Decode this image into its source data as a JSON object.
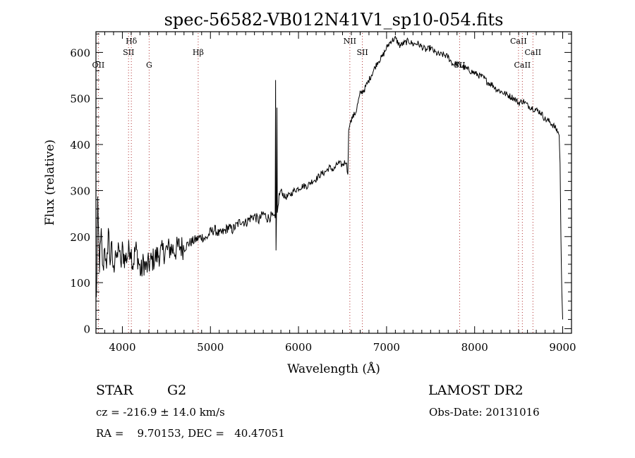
{
  "chart_data": {
    "type": "line",
    "title": "spec-56582-VB012N41V1_sp10-054.fits",
    "xlabel": "Wavelength (Å)",
    "ylabel": "Flux (relative)",
    "xlim": [
      3700,
      9100
    ],
    "ylim": [
      -10,
      645
    ],
    "x_ticks": [
      4000,
      5000,
      6000,
      7000,
      8000,
      9000
    ],
    "y_ticks": [
      0,
      100,
      200,
      300,
      400,
      500,
      600
    ],
    "grid": false,
    "line_color": "#000000",
    "marker_color": "#b03030",
    "spectrum": {
      "x": [
        3705,
        3720,
        3740,
        3760,
        3780,
        3800,
        3820,
        3840,
        3860,
        3880,
        3900,
        3920,
        3940,
        3960,
        3980,
        4000,
        4030,
        4060,
        4090,
        4120,
        4150,
        4180,
        4210,
        4240,
        4270,
        4300,
        4350,
        4400,
        4450,
        4500,
        4550,
        4600,
        4650,
        4700,
        4750,
        4800,
        4850,
        4900,
        4950,
        5000,
        5050,
        5100,
        5150,
        5200,
        5250,
        5300,
        5350,
        5400,
        5450,
        5500,
        5550,
        5600,
        5650,
        5700,
        5735,
        5740,
        5745,
        5750,
        5755,
        5760,
        5780,
        5800,
        5850,
        5900,
        5950,
        6000,
        6050,
        6100,
        6150,
        6200,
        6250,
        6300,
        6350,
        6400,
        6450,
        6500,
        6540,
        6560,
        6570,
        6580,
        6590,
        6600,
        6650,
        6700,
        6750,
        6800,
        6850,
        6900,
        6950,
        7000,
        7050,
        7100,
        7150,
        7200,
        7250,
        7300,
        7350,
        7400,
        7450,
        7500,
        7550,
        7600,
        7650,
        7700,
        7750,
        7800,
        7850,
        7900,
        7950,
        8000,
        8050,
        8100,
        8150,
        8200,
        8250,
        8300,
        8350,
        8400,
        8450,
        8500,
        8550,
        8600,
        8650,
        8700,
        8750,
        8800,
        8850,
        8900,
        8940,
        8960,
        8970,
        8980,
        8990,
        9000
      ],
      "y": [
        60,
        260,
        140,
        200,
        120,
        190,
        110,
        220,
        150,
        170,
        120,
        180,
        140,
        190,
        130,
        170,
        150,
        160,
        180,
        140,
        175,
        150,
        120,
        145,
        130,
        140,
        150,
        160,
        165,
        170,
        175,
        170,
        180,
        175,
        185,
        190,
        195,
        200,
        195,
        210,
        215,
        205,
        210,
        220,
        215,
        225,
        235,
        230,
        240,
        245,
        235,
        250,
        240,
        245,
        240,
        540,
        170,
        250,
        480,
        250,
        290,
        300,
        285,
        290,
        300,
        305,
        310,
        310,
        320,
        325,
        335,
        340,
        350,
        345,
        360,
        355,
        365,
        335,
        430,
        440,
        450,
        455,
        470,
        510,
        520,
        540,
        560,
        580,
        590,
        610,
        625,
        630,
        615,
        620,
        625,
        618,
        620,
        612,
        605,
        610,
        600,
        595,
        595,
        590,
        575,
        575,
        570,
        565,
        560,
        555,
        550,
        545,
        535,
        530,
        520,
        515,
        510,
        505,
        500,
        490,
        495,
        485,
        480,
        475,
        470,
        455,
        450,
        440,
        430,
        420,
        360,
        200,
        80,
        20
      ]
    },
    "lines": [
      {
        "label": "OII",
        "x": 3727,
        "row": 3
      },
      {
        "label": "Hδ",
        "x": 4102,
        "row": 1
      },
      {
        "label": "SII",
        "x": 4070,
        "row": 2
      },
      {
        "label": "G",
        "x": 4304,
        "row": 3
      },
      {
        "label": "Hβ",
        "x": 4861,
        "row": 2
      },
      {
        "label": "NII",
        "x": 6583,
        "row": 1
      },
      {
        "label": "SII",
        "x": 6725,
        "row": 2
      },
      {
        "label": "SII",
        "x": 7830,
        "row": 3
      },
      {
        "label": "CaII",
        "x": 8498,
        "row": 1
      },
      {
        "label": "CaII",
        "x": 8542,
        "row": 3
      },
      {
        "label": "CaII",
        "x": 8662,
        "row": 2
      }
    ]
  },
  "footer": {
    "class_label": "STAR",
    "subclass_label": "G2",
    "survey_label": "LAMOST DR2",
    "cz_text": "cz = -216.9 ± 14.0 km/s",
    "obsdate_text": "Obs-Date: 20131016",
    "coords_text": "RA =    9.70153, DEC =   40.47051"
  }
}
